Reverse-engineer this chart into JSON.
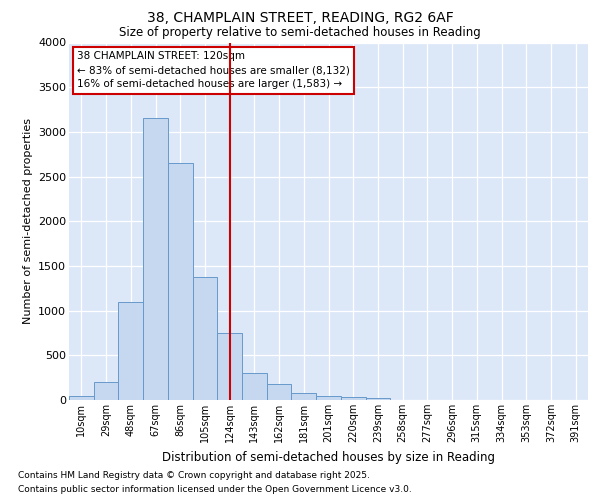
{
  "title1": "38, CHAMPLAIN STREET, READING, RG2 6AF",
  "title2": "Size of property relative to semi-detached houses in Reading",
  "xlabel": "Distribution of semi-detached houses by size in Reading",
  "ylabel": "Number of semi-detached properties",
  "bin_labels": [
    "10sqm",
    "29sqm",
    "48sqm",
    "67sqm",
    "86sqm",
    "105sqm",
    "124sqm",
    "143sqm",
    "162sqm",
    "181sqm",
    "201sqm",
    "220sqm",
    "239sqm",
    "258sqm",
    "277sqm",
    "296sqm",
    "315sqm",
    "334sqm",
    "353sqm",
    "372sqm",
    "391sqm"
  ],
  "bar_values": [
    50,
    200,
    1100,
    3150,
    2650,
    1380,
    750,
    300,
    175,
    75,
    50,
    30,
    25,
    0,
    0,
    0,
    0,
    0,
    0,
    0,
    0
  ],
  "bar_color": "#c5d8f0",
  "bar_edge_color": "#6699cc",
  "property_bin_index": 6,
  "property_line_color": "#cc0000",
  "annotation_title": "38 CHAMPLAIN STREET: 120sqm",
  "annotation_line1": "← 83% of semi-detached houses are smaller (8,132)",
  "annotation_line2": "16% of semi-detached houses are larger (1,583) →",
  "ylim": [
    0,
    4000
  ],
  "yticks": [
    0,
    500,
    1000,
    1500,
    2000,
    2500,
    3000,
    3500,
    4000
  ],
  "plot_bg_color": "#dce8f8",
  "grid_color": "#ffffff",
  "fig_bg_color": "#ffffff",
  "footer1": "Contains HM Land Registry data © Crown copyright and database right 2025.",
  "footer2": "Contains public sector information licensed under the Open Government Licence v3.0."
}
